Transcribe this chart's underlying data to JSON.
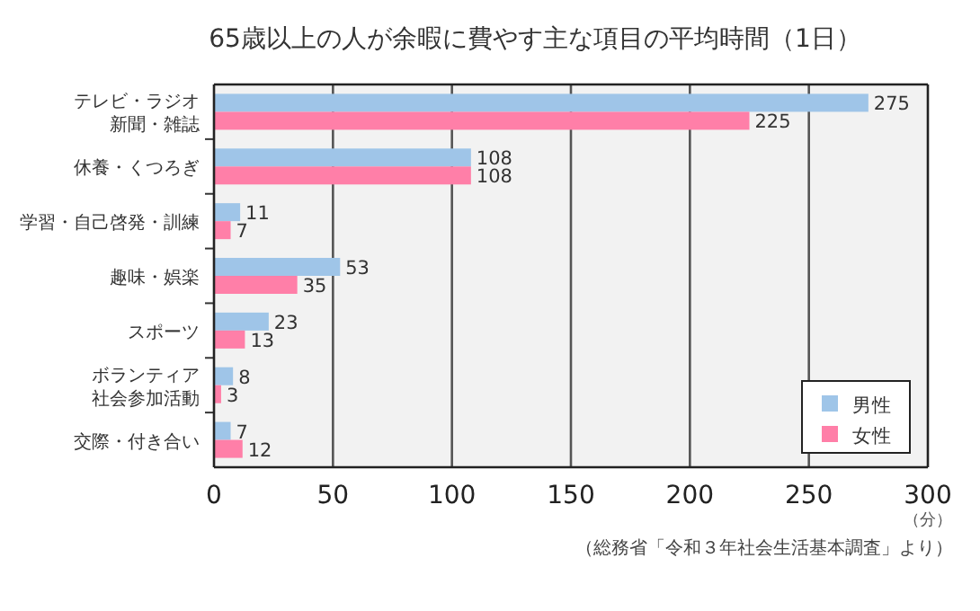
{
  "chart_data": {
    "type": "bar",
    "orientation": "horizontal",
    "title": "65歳以上の人が余暇に費やす主な項目の平均時間（1日）",
    "xlabel": "（分）",
    "categories": [
      "テレビ・ラジオ新聞・雑誌",
      "休養・くつろぎ",
      "学習・自己啓発・訓練",
      "趣味・娯楽",
      "スポーツ",
      "ボランティア社会参加活動",
      "交際・付き合い"
    ],
    "series": [
      {
        "name": "男性",
        "color": "#9fc5e8",
        "values": [
          275,
          108,
          11,
          53,
          23,
          8,
          7
        ]
      },
      {
        "name": "女性",
        "color": "#ff7fa8",
        "values": [
          225,
          108,
          7,
          35,
          13,
          3,
          12
        ]
      }
    ],
    "xlim": [
      0,
      300
    ],
    "xticks": [
      0,
      50,
      100,
      150,
      200,
      250,
      300
    ],
    "grid": "x",
    "legend": "bottom right",
    "data_labels": true,
    "annotations": [
      "（総務省「令和３年社会生活基本調査」より）"
    ]
  }
}
